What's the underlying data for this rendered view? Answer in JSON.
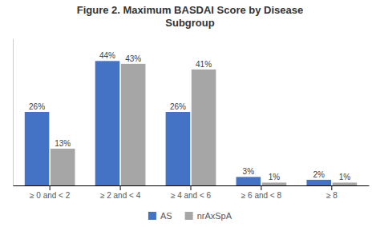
{
  "chart_data": {
    "type": "bar",
    "title": "Figure 2. Maximum BASDAI Score by Disease\nSubgroup",
    "categories": [
      "≥ 0 and < 2",
      "≥ 2 and < 4",
      "≥ 4 and < 6",
      "≥ 6 and < 8",
      "≥ 8"
    ],
    "series": [
      {
        "name": "AS",
        "color": "#4472C4",
        "values": [
          26,
          44,
          26,
          3,
          2
        ],
        "value_labels": [
          "26%",
          "44%",
          "26%",
          "3%",
          "2%"
        ]
      },
      {
        "name": "nrAxSpA",
        "color": "#A6A6A6",
        "values": [
          13,
          43,
          41,
          1,
          1
        ],
        "value_labels": [
          "13%",
          "43%",
          "41%",
          "1%",
          "1%"
        ]
      }
    ],
    "ylim": [
      0,
      52
    ],
    "grid": false,
    "legend": "bottom",
    "data_labels": true,
    "tick_labels": "x"
  }
}
